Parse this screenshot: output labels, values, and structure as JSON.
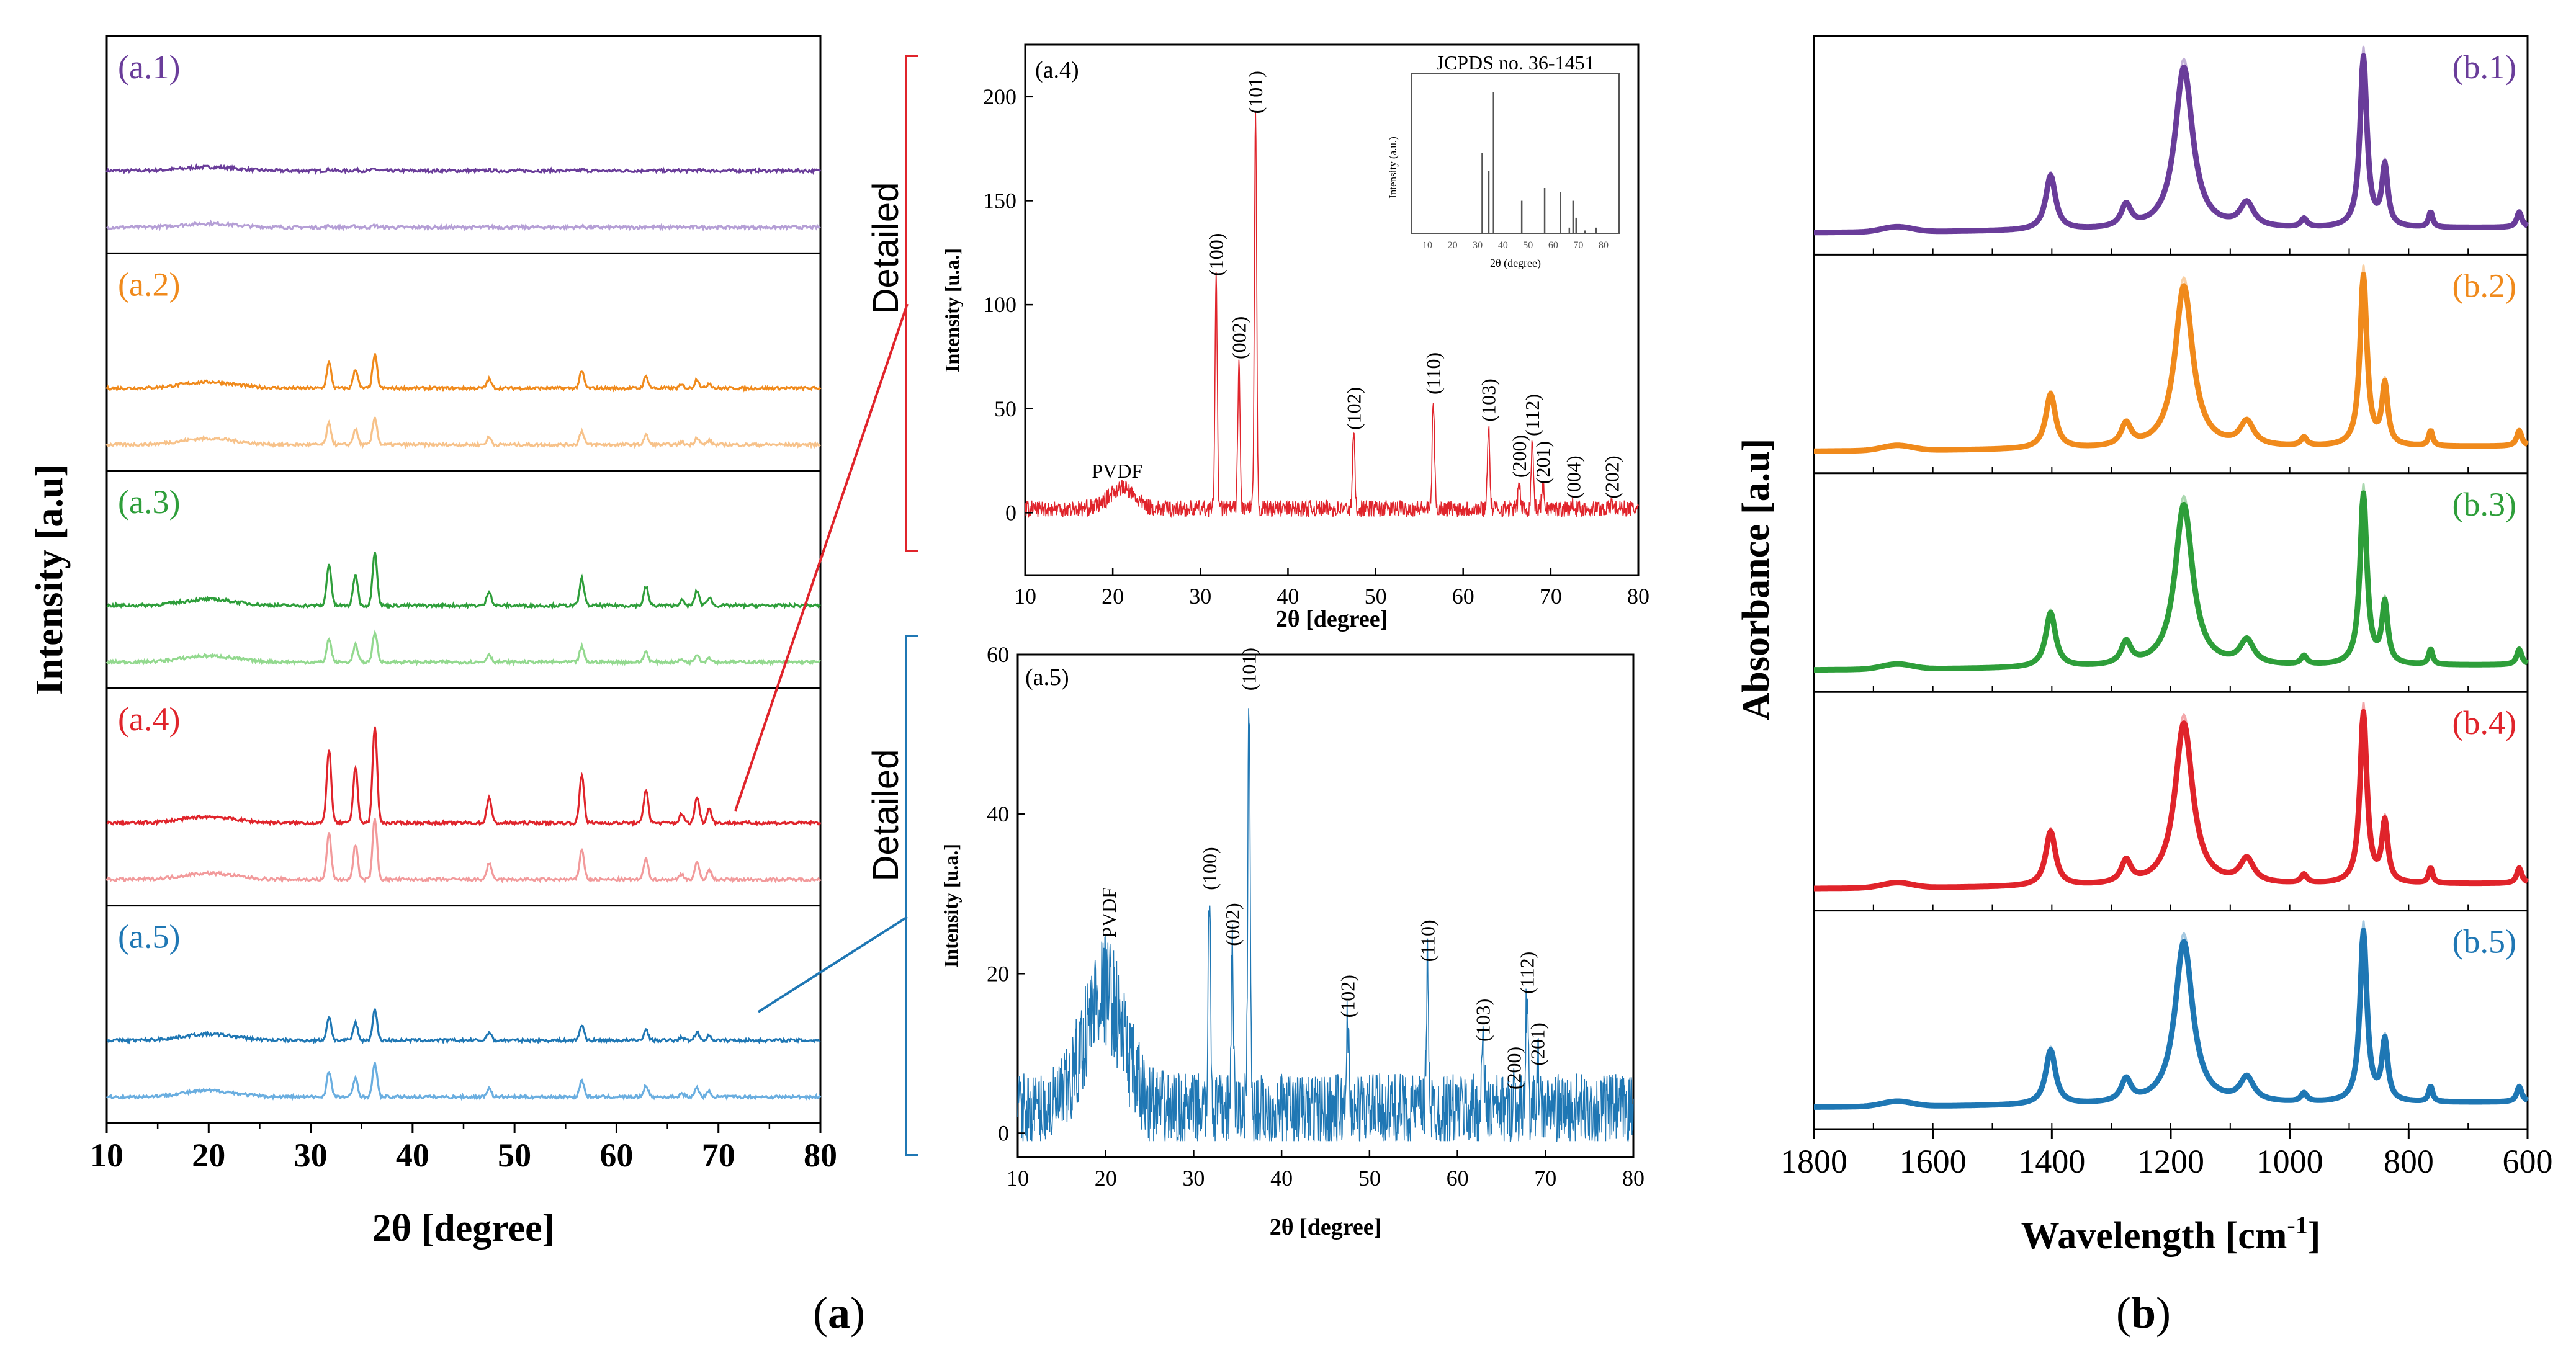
{
  "figure": {
    "label_a": "(a)",
    "label_b": "(b)"
  },
  "colors": {
    "a1": "#6a3d9a",
    "a1_light": "#b59fd6",
    "a2": "#f08a1c",
    "a2_light": "#f7c28a",
    "a3": "#2e9e3a",
    "a3_light": "#93d98f",
    "a4": "#e0242b",
    "a4_light": "#f29a9b",
    "a5": "#1f77b4",
    "a5_light": "#6aaee0"
  },
  "chart_data": [
    {
      "id": "xrd-stack",
      "type": "line",
      "title": "",
      "xlabel": "2θ [degree]",
      "ylabel": "Intensity [a.u]",
      "xlim": [
        10,
        80
      ],
      "xticks": [
        10,
        20,
        30,
        40,
        50,
        60,
        70,
        80
      ],
      "panels": [
        {
          "label": "(a.1)",
          "series": [
            "dark",
            "light"
          ]
        },
        {
          "label": "(a.2)",
          "series": [
            "dark",
            "light"
          ]
        },
        {
          "label": "(a.3)",
          "series": [
            "dark",
            "light"
          ]
        },
        {
          "label": "(a.4)",
          "series": [
            "dark",
            "light"
          ]
        },
        {
          "label": "(a.5)",
          "series": [
            "dark",
            "light"
          ]
        }
      ],
      "peaks_2theta": [
        31.8,
        34.4,
        36.3,
        47.5,
        56.6,
        62.9,
        66.4,
        67.9,
        69.1
      ]
    },
    {
      "id": "xrd-a4-detail",
      "type": "line",
      "panel_label": "(a.4)",
      "xlabel": "2θ [degree]",
      "ylabel": "Intensity [u.a.]",
      "xlim": [
        10,
        80
      ],
      "ylim": [
        -30,
        225
      ],
      "xticks": [
        10,
        20,
        30,
        40,
        50,
        60,
        70,
        80
      ],
      "yticks": [
        0,
        50,
        100,
        150,
        200
      ],
      "annotations": [
        {
          "text": "PVDF",
          "x": 20.5,
          "y": 15
        },
        {
          "text": "(100)",
          "x": 31.8,
          "y": 112
        },
        {
          "text": "(002)",
          "x": 34.4,
          "y": 72
        },
        {
          "text": "(101)",
          "x": 36.3,
          "y": 190
        },
        {
          "text": "(102)",
          "x": 47.5,
          "y": 38
        },
        {
          "text": "(110)",
          "x": 56.6,
          "y": 55
        },
        {
          "text": "(103)",
          "x": 62.9,
          "y": 42
        },
        {
          "text": "(200)",
          "x": 66.4,
          "y": 15
        },
        {
          "text": "(112)",
          "x": 67.9,
          "y": 35
        },
        {
          "text": "(201)",
          "x": 69.1,
          "y": 12
        },
        {
          "text": "(004)",
          "x": 72.6,
          "y": 5
        },
        {
          "text": "(202)",
          "x": 77.0,
          "y": 5
        }
      ],
      "inset": {
        "title": "JCPDS no. 36-1451",
        "xlabel": "2θ (degree)",
        "ylabel": "Intensity (a.u.)",
        "xlim": [
          10,
          80
        ],
        "xticks": [
          10,
          20,
          30,
          40,
          50,
          60,
          70,
          80
        ],
        "sticks": [
          [
            31.8,
            57
          ],
          [
            34.4,
            44
          ],
          [
            36.3,
            100
          ],
          [
            47.5,
            23
          ],
          [
            56.6,
            32
          ],
          [
            62.9,
            29
          ],
          [
            66.4,
            4
          ],
          [
            67.9,
            23
          ],
          [
            69.1,
            11
          ],
          [
            72.6,
            2
          ],
          [
            77.0,
            4
          ]
        ]
      }
    },
    {
      "id": "xrd-a5-detail",
      "type": "line",
      "panel_label": "(a.5)",
      "xlabel": "2θ [degree]",
      "ylabel": "Intensity [u.a.]",
      "xlim": [
        10,
        80
      ],
      "ylim": [
        -3,
        60
      ],
      "xticks": [
        10,
        20,
        30,
        40,
        50,
        60,
        70,
        80
      ],
      "yticks": [
        0,
        20,
        40,
        60
      ],
      "annotations": [
        {
          "text": "PVDF",
          "x": 20.3,
          "y": 24
        },
        {
          "text": "(100)",
          "x": 31.8,
          "y": 30
        },
        {
          "text": "(002)",
          "x": 34.4,
          "y": 23
        },
        {
          "text": "(101)",
          "x": 36.3,
          "y": 55
        },
        {
          "text": "(102)",
          "x": 47.5,
          "y": 14
        },
        {
          "text": "(110)",
          "x": 56.6,
          "y": 21
        },
        {
          "text": "(103)",
          "x": 62.9,
          "y": 11
        },
        {
          "text": "(200)",
          "x": 66.4,
          "y": 5
        },
        {
          "text": "(112)",
          "x": 67.9,
          "y": 17
        },
        {
          "text": "(201)",
          "x": 69.1,
          "y": 8
        }
      ]
    },
    {
      "id": "ftir-stack",
      "type": "line",
      "xlabel": "Wavelength [cm",
      "xlabel_sup": "-1",
      "xlabel_end": "]",
      "ylabel": "Absorbance [a.u]",
      "xlim": [
        1800,
        600
      ],
      "xticks": [
        1800,
        1600,
        1400,
        1200,
        1000,
        800,
        600
      ],
      "panels": [
        {
          "label": "(b.1)"
        },
        {
          "label": "(b.2)"
        },
        {
          "label": "(b.3)"
        },
        {
          "label": "(b.4)"
        },
        {
          "label": "(b.5)"
        }
      ],
      "bands_cm1": [
        1402,
        1275,
        1178,
        1072,
        976,
        876,
        840,
        763,
        614
      ]
    }
  ],
  "callouts": {
    "detail_a4": "Detailed",
    "detail_a5": "Detailed"
  }
}
